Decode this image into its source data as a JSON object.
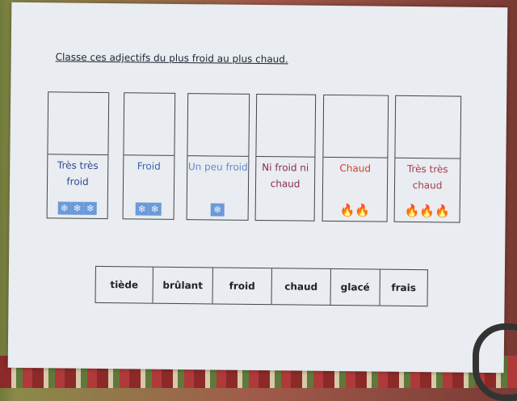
{
  "worksheet": {
    "instruction": "Classe ces adjectifs du plus froid au plus chaud.",
    "columns": [
      {
        "label": "Très très froid",
        "color": "#2e4a8a",
        "icon": "snowflake-icon",
        "count": 3
      },
      {
        "label": "Froid",
        "color": "#3a62b0",
        "icon": "snowflake-icon",
        "count": 2
      },
      {
        "label": "Un peu froid",
        "color": "#5b8ad0",
        "icon": "snowflake-icon",
        "count": 1
      },
      {
        "label": "Ni froid ni chaud",
        "color": "#8a2a4a",
        "icon": "none",
        "count": 0
      },
      {
        "label": "Chaud",
        "color": "#d0402a",
        "icon": "flame-icon",
        "count": 2
      },
      {
        "label": "Très très chaud",
        "color": "#a83a4a",
        "icon": "flame-icon",
        "count": 3
      }
    ],
    "words": [
      "tiède",
      "brûlant",
      "froid",
      "chaud",
      "glacé",
      "frais"
    ]
  }
}
